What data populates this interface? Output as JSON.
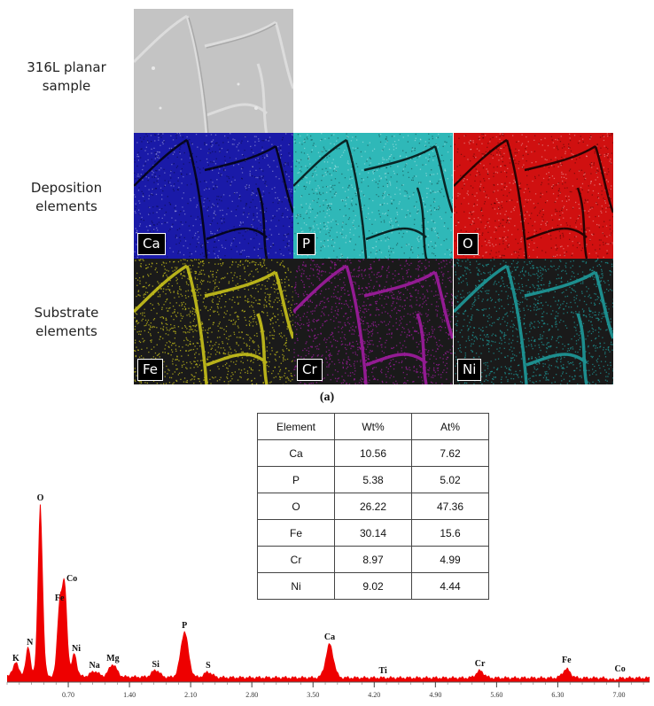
{
  "rows": {
    "sem": [
      "316L planar",
      "sample"
    ],
    "deposition": [
      "Deposition",
      "elements"
    ],
    "substrate": [
      "Substrate",
      "elements"
    ]
  },
  "maps": {
    "ca": {
      "label": "Ca",
      "color": "#1a1aa8"
    },
    "p": {
      "label": "P",
      "color": "#2fb8b8"
    },
    "o": {
      "label": "O",
      "color": "#d01010"
    },
    "fe": {
      "label": "Fe",
      "color": "#c8c21a"
    },
    "cr": {
      "label": "Cr",
      "color": "#a01ca0"
    },
    "ni": {
      "label": "Ni",
      "color": "#1e9a9a"
    }
  },
  "caption": "(a)",
  "composition_table": {
    "headers": [
      "Element",
      "Wt%",
      "At%"
    ],
    "rows": [
      [
        "Ca",
        "10.56",
        "7.62"
      ],
      [
        "P",
        "5.38",
        "5.02"
      ],
      [
        "O",
        "26.22",
        "47.36"
      ],
      [
        "Fe",
        "30.14",
        "15.6"
      ],
      [
        "Cr",
        "8.97",
        "4.99"
      ],
      [
        "Ni",
        "9.02",
        "4.44"
      ]
    ]
  },
  "chart_data": {
    "type": "area",
    "color": "#ee0000",
    "x_ticks": [
      "0.70",
      "1.40",
      "2.10",
      "2.80",
      "3.50",
      "4.20",
      "4.90",
      "5.60",
      "6.30",
      "7.00"
    ],
    "xlim": [
      0,
      7.35
    ],
    "ylim": [
      0,
      100
    ],
    "peaks": [
      {
        "label": "K",
        "x": 0.1,
        "y": 10
      },
      {
        "label": "N",
        "x": 0.24,
        "y": 18
      },
      {
        "label": "O",
        "x": 0.38,
        "y": 100
      },
      {
        "label": "Fe",
        "x": 0.6,
        "y": 42
      },
      {
        "label": "Co",
        "x": 0.66,
        "y": 52
      },
      {
        "label": "Ni",
        "x": 0.77,
        "y": 15
      },
      {
        "label": "Na",
        "x": 1.0,
        "y": 5
      },
      {
        "label": "Mg",
        "x": 1.21,
        "y": 9
      },
      {
        "label": "Si",
        "x": 1.7,
        "y": 6
      },
      {
        "label": "P",
        "x": 2.03,
        "y": 28
      },
      {
        "label": "S",
        "x": 2.3,
        "y": 5
      },
      {
        "label": "Ca",
        "x": 3.69,
        "y": 21
      },
      {
        "label": "Ti",
        "x": 4.3,
        "y": 2
      },
      {
        "label": "Cr",
        "x": 5.41,
        "y": 6
      },
      {
        "label": "Fe",
        "x": 6.4,
        "y": 7
      },
      {
        "label": "Co",
        "x": 6.93,
        "y": 1
      }
    ]
  }
}
